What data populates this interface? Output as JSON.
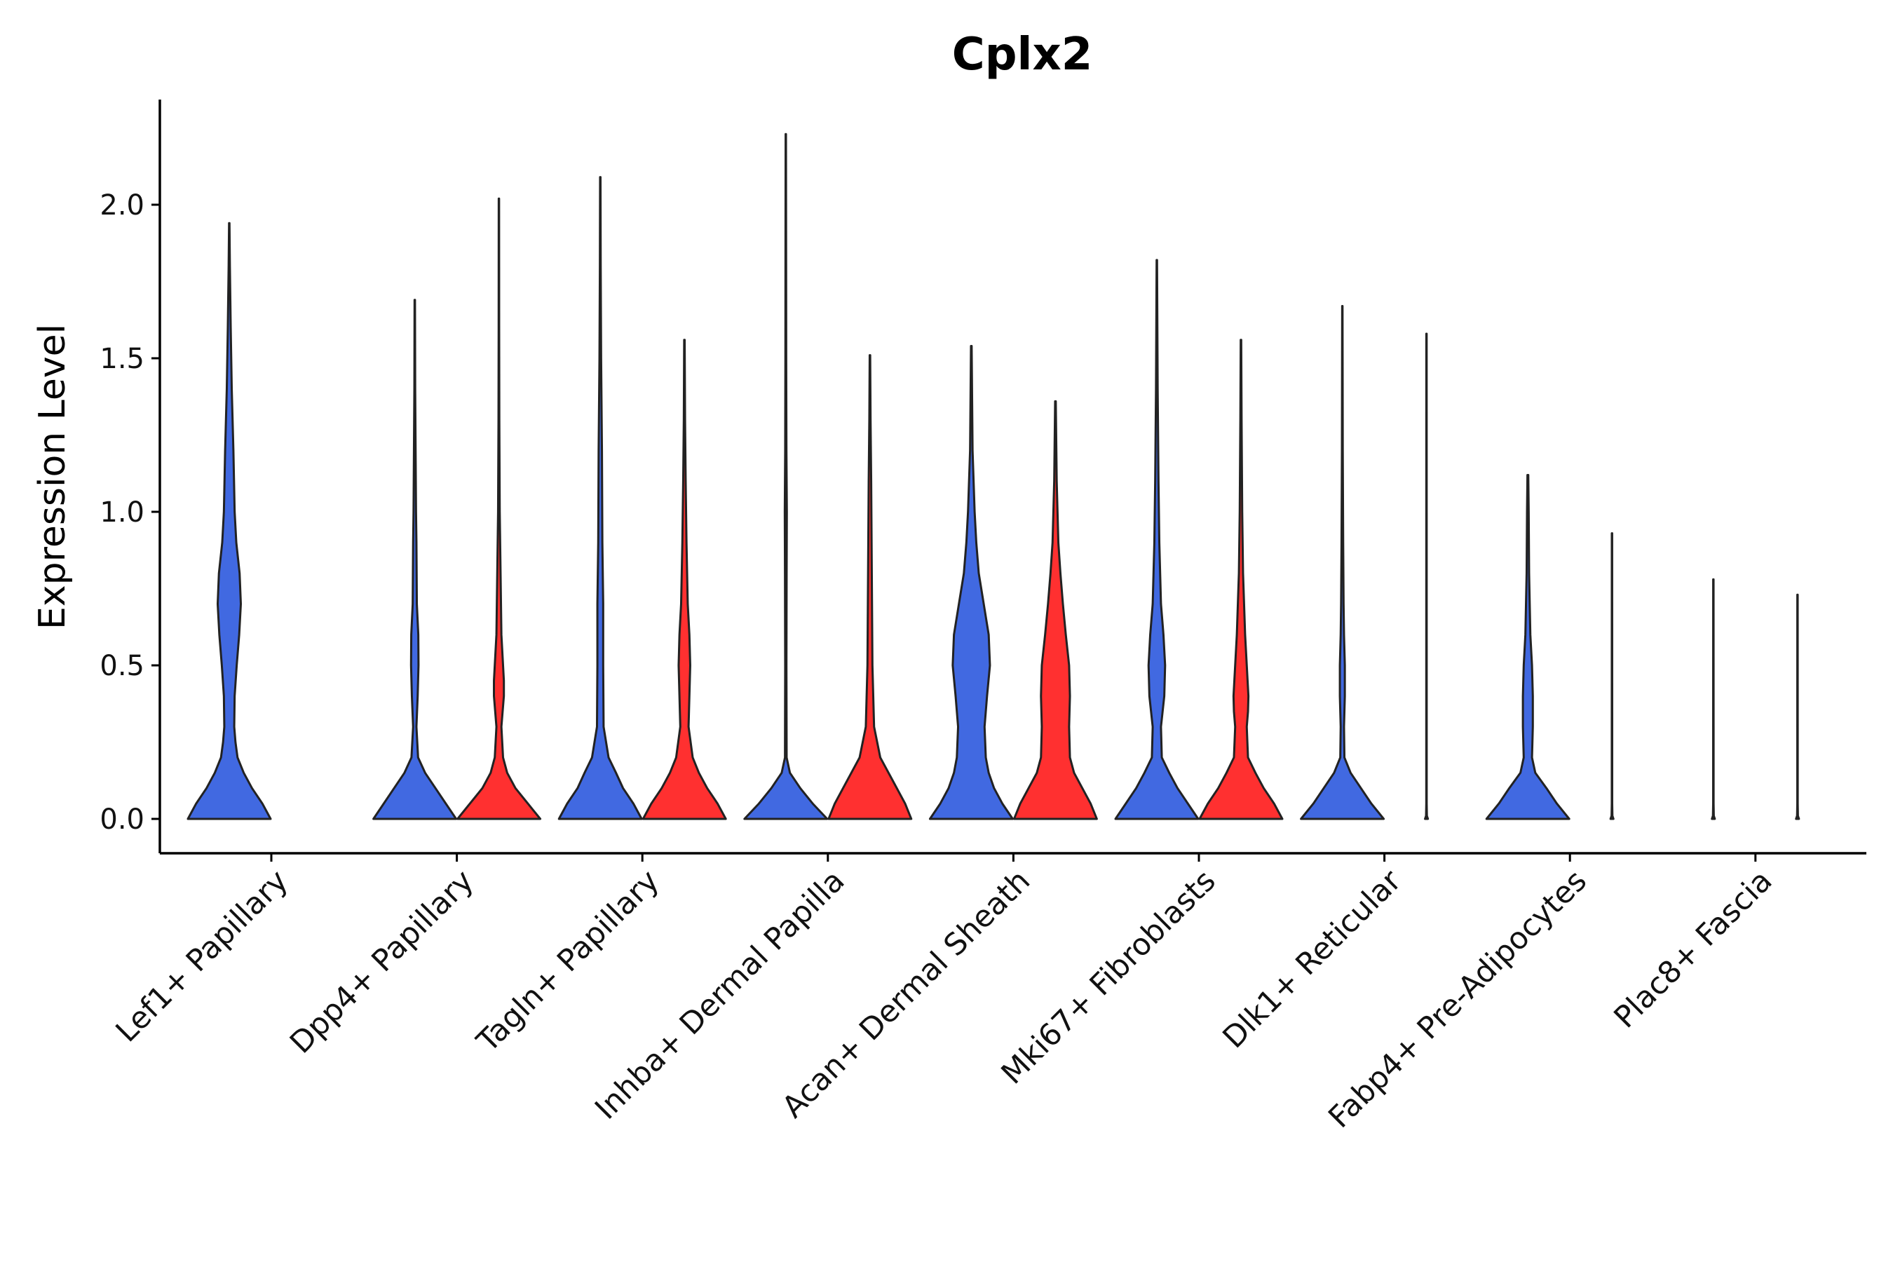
{
  "chart_data": {
    "type": "violin",
    "title": "Cplx2",
    "xlabel": "",
    "ylabel": "Expression Level",
    "ylim": [
      -0.11,
      2.35
    ],
    "yticks": [
      "0.0",
      "0.5",
      "1.0",
      "1.5",
      "2.0"
    ],
    "ytick_values": [
      0,
      0.5,
      1.0,
      1.5,
      2.0
    ],
    "colors": {
      "blue": "#4169E1",
      "red": "#FF3030",
      "outline": "#222222",
      "axis": "#000000"
    },
    "categories": [
      "Lef1+ Papillary",
      "Dpp4+ Papillary",
      "Tagln+ Papillary",
      "Inhba+ Dermal Papilla",
      "Acan+ Dermal Sheath",
      "Mki67+ Fibroblasts",
      "Dlk1+ Reticular",
      "Fabp4+ Pre-Adipocytes",
      "Plac8+ Fascia"
    ],
    "series": [
      {
        "name": "blue",
        "max_values": [
          1.94,
          1.69,
          2.09,
          2.23,
          1.54,
          1.82,
          1.67,
          1.12,
          0.78
        ],
        "densities": [
          [
            [
              0,
              1.0
            ],
            [
              0.05,
              0.8
            ],
            [
              0.1,
              0.55
            ],
            [
              0.15,
              0.35
            ],
            [
              0.2,
              0.2
            ],
            [
              0.25,
              0.15
            ],
            [
              0.3,
              0.12
            ],
            [
              0.4,
              0.13
            ],
            [
              0.5,
              0.18
            ],
            [
              0.6,
              0.24
            ],
            [
              0.7,
              0.28
            ],
            [
              0.8,
              0.25
            ],
            [
              0.9,
              0.17
            ],
            [
              1.0,
              0.13
            ],
            [
              1.2,
              0.1
            ],
            [
              1.4,
              0.06
            ],
            [
              1.6,
              0.035
            ],
            [
              1.8,
              0.015
            ],
            [
              1.94,
              0.005
            ]
          ],
          [
            [
              0,
              1.0
            ],
            [
              0.05,
              0.75
            ],
            [
              0.1,
              0.5
            ],
            [
              0.15,
              0.25
            ],
            [
              0.2,
              0.08
            ],
            [
              0.3,
              0.04
            ],
            [
              0.4,
              0.07
            ],
            [
              0.5,
              0.09
            ],
            [
              0.6,
              0.085
            ],
            [
              0.7,
              0.05
            ],
            [
              0.9,
              0.04
            ],
            [
              1.0,
              0.03
            ],
            [
              1.2,
              0.02
            ],
            [
              1.4,
              0.01
            ],
            [
              1.69,
              0.005
            ]
          ],
          [
            [
              0,
              1.0
            ],
            [
              0.05,
              0.8
            ],
            [
              0.1,
              0.55
            ],
            [
              0.15,
              0.38
            ],
            [
              0.2,
              0.2
            ],
            [
              0.3,
              0.08
            ],
            [
              0.5,
              0.07
            ],
            [
              0.6,
              0.07
            ],
            [
              0.7,
              0.07
            ],
            [
              0.9,
              0.05
            ],
            [
              1.2,
              0.04
            ],
            [
              1.5,
              0.02
            ],
            [
              1.8,
              0.01
            ],
            [
              2.09,
              0.005
            ]
          ],
          [
            [
              0,
              1.0
            ],
            [
              0.05,
              0.65
            ],
            [
              0.1,
              0.35
            ],
            [
              0.15,
              0.1
            ],
            [
              0.2,
              0.02
            ],
            [
              0.5,
              0.015
            ],
            [
              0.8,
              0.02
            ],
            [
              1.0,
              0.025
            ],
            [
              1.2,
              0.015
            ],
            [
              1.5,
              0.01
            ],
            [
              1.8,
              0.008
            ],
            [
              2.23,
              0.004
            ]
          ],
          [
            [
              0,
              1.0
            ],
            [
              0.05,
              0.75
            ],
            [
              0.1,
              0.55
            ],
            [
              0.15,
              0.42
            ],
            [
              0.2,
              0.35
            ],
            [
              0.3,
              0.32
            ],
            [
              0.4,
              0.38
            ],
            [
              0.5,
              0.45
            ],
            [
              0.6,
              0.42
            ],
            [
              0.7,
              0.3
            ],
            [
              0.8,
              0.18
            ],
            [
              0.9,
              0.12
            ],
            [
              1.0,
              0.08
            ],
            [
              1.2,
              0.03
            ],
            [
              1.54,
              0.008
            ]
          ],
          [
            [
              0,
              1.0
            ],
            [
              0.05,
              0.75
            ],
            [
              0.1,
              0.5
            ],
            [
              0.15,
              0.3
            ],
            [
              0.2,
              0.12
            ],
            [
              0.3,
              0.1
            ],
            [
              0.4,
              0.18
            ],
            [
              0.5,
              0.2
            ],
            [
              0.6,
              0.16
            ],
            [
              0.7,
              0.1
            ],
            [
              0.9,
              0.06
            ],
            [
              1.1,
              0.04
            ],
            [
              1.4,
              0.02
            ],
            [
              1.82,
              0.005
            ]
          ],
          [
            [
              0,
              1.0
            ],
            [
              0.05,
              0.7
            ],
            [
              0.1,
              0.45
            ],
            [
              0.15,
              0.2
            ],
            [
              0.2,
              0.05
            ],
            [
              0.3,
              0.04
            ],
            [
              0.4,
              0.06
            ],
            [
              0.5,
              0.06
            ],
            [
              0.6,
              0.04
            ],
            [
              0.7,
              0.03
            ],
            [
              0.9,
              0.02
            ],
            [
              1.2,
              0.01
            ],
            [
              1.67,
              0.004
            ]
          ],
          [
            [
              0,
              1.0
            ],
            [
              0.05,
              0.7
            ],
            [
              0.1,
              0.45
            ],
            [
              0.15,
              0.18
            ],
            [
              0.2,
              0.1
            ],
            [
              0.3,
              0.12
            ],
            [
              0.4,
              0.12
            ],
            [
              0.5,
              0.1
            ],
            [
              0.6,
              0.06
            ],
            [
              0.8,
              0.03
            ],
            [
              1.0,
              0.02
            ],
            [
              1.12,
              0.01
            ]
          ],
          [
            [
              0,
              0.035
            ],
            [
              0.01,
              0.01
            ],
            [
              0.05,
              0.005
            ],
            [
              0.3,
              0.005
            ],
            [
              0.78,
              0.004
            ]
          ]
        ]
      },
      {
        "name": "red",
        "max_values": [
          null,
          2.02,
          1.56,
          1.51,
          1.36,
          1.56,
          1.58,
          0.93,
          0.73
        ],
        "densities": [
          null,
          [
            [
              0,
              1.0
            ],
            [
              0.05,
              0.7
            ],
            [
              0.1,
              0.4
            ],
            [
              0.15,
              0.2
            ],
            [
              0.2,
              0.1
            ],
            [
              0.3,
              0.06
            ],
            [
              0.4,
              0.12
            ],
            [
              0.45,
              0.12
            ],
            [
              0.5,
              0.1
            ],
            [
              0.6,
              0.06
            ],
            [
              0.8,
              0.04
            ],
            [
              1.0,
              0.02
            ],
            [
              1.3,
              0.01
            ],
            [
              1.6,
              0.006
            ],
            [
              2.02,
              0.004
            ]
          ],
          [
            [
              0,
              1.0
            ],
            [
              0.05,
              0.8
            ],
            [
              0.1,
              0.55
            ],
            [
              0.15,
              0.35
            ],
            [
              0.2,
              0.2
            ],
            [
              0.3,
              0.1
            ],
            [
              0.4,
              0.12
            ],
            [
              0.5,
              0.14
            ],
            [
              0.6,
              0.12
            ],
            [
              0.7,
              0.08
            ],
            [
              0.9,
              0.05
            ],
            [
              1.1,
              0.03
            ],
            [
              1.3,
              0.015
            ],
            [
              1.56,
              0.006
            ]
          ],
          [
            [
              0,
              1.0
            ],
            [
              0.05,
              0.85
            ],
            [
              0.1,
              0.65
            ],
            [
              0.15,
              0.45
            ],
            [
              0.2,
              0.25
            ],
            [
              0.3,
              0.1
            ],
            [
              0.5,
              0.06
            ],
            [
              0.7,
              0.05
            ],
            [
              0.9,
              0.04
            ],
            [
              1.1,
              0.03
            ],
            [
              1.3,
              0.015
            ],
            [
              1.51,
              0.006
            ]
          ],
          [
            [
              0,
              1.0
            ],
            [
              0.05,
              0.85
            ],
            [
              0.1,
              0.65
            ],
            [
              0.15,
              0.45
            ],
            [
              0.2,
              0.35
            ],
            [
              0.3,
              0.33
            ],
            [
              0.4,
              0.35
            ],
            [
              0.5,
              0.33
            ],
            [
              0.6,
              0.25
            ],
            [
              0.7,
              0.18
            ],
            [
              0.8,
              0.12
            ],
            [
              0.9,
              0.07
            ],
            [
              1.1,
              0.03
            ],
            [
              1.36,
              0.008
            ]
          ],
          [
            [
              0,
              1.0
            ],
            [
              0.05,
              0.8
            ],
            [
              0.1,
              0.55
            ],
            [
              0.15,
              0.35
            ],
            [
              0.2,
              0.17
            ],
            [
              0.3,
              0.14
            ],
            [
              0.35,
              0.17
            ],
            [
              0.4,
              0.18
            ],
            [
              0.5,
              0.14
            ],
            [
              0.6,
              0.1
            ],
            [
              0.8,
              0.05
            ],
            [
              1.0,
              0.03
            ],
            [
              1.3,
              0.015
            ],
            [
              1.56,
              0.006
            ]
          ],
          [
            [
              0,
              0.035
            ],
            [
              0.01,
              0.01
            ],
            [
              0.05,
              0.005
            ],
            [
              0.5,
              0.005
            ],
            [
              1.58,
              0.004
            ]
          ],
          [
            [
              0,
              0.035
            ],
            [
              0.01,
              0.01
            ],
            [
              0.05,
              0.005
            ],
            [
              0.3,
              0.005
            ],
            [
              0.93,
              0.004
            ]
          ],
          [
            [
              0,
              0.035
            ],
            [
              0.01,
              0.01
            ],
            [
              0.05,
              0.005
            ],
            [
              0.3,
              0.005
            ],
            [
              0.73,
              0.004
            ]
          ]
        ]
      }
    ]
  }
}
